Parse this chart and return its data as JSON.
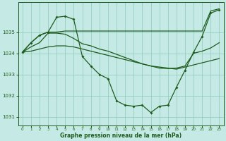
{
  "title": "Graphe pression niveau de la mer (hPa)",
  "bg": "#c5eae5",
  "grid_color": "#8ec8b8",
  "lc": "#1e5c1e",
  "xlim": [
    -0.5,
    23.5
  ],
  "ylim": [
    1030.6,
    1036.4
  ],
  "yticks": [
    1031,
    1032,
    1033,
    1034,
    1035
  ],
  "xticks": [
    0,
    1,
    2,
    3,
    4,
    5,
    6,
    7,
    8,
    9,
    10,
    11,
    12,
    13,
    14,
    15,
    16,
    17,
    18,
    19,
    20,
    21,
    22,
    23
  ],
  "x": [
    0,
    1,
    2,
    3,
    4,
    5,
    6,
    7,
    8,
    9,
    10,
    11,
    12,
    13,
    14,
    15,
    16,
    17,
    18,
    19,
    20,
    21,
    22,
    23
  ],
  "line_marker_y": [
    1034.05,
    1034.5,
    1034.85,
    1035.0,
    1035.7,
    1035.75,
    1035.6,
    1033.85,
    1033.4,
    1033.0,
    1032.8,
    1031.75,
    1031.55,
    1031.5,
    1031.55,
    1031.2,
    1031.5,
    1031.55,
    1032.4,
    1033.2,
    1034.05,
    1034.8,
    1035.9,
    1036.05
  ],
  "line_flat_y": [
    1034.05,
    1034.5,
    1034.85,
    1035.0,
    1035.0,
    1035.05,
    1035.05,
    1035.05,
    1035.05,
    1035.05,
    1035.05,
    1035.05,
    1035.05,
    1035.05,
    1035.05,
    1035.05,
    1035.05,
    1035.05,
    1035.05,
    1035.05,
    1035.05,
    1035.05,
    1036.0,
    1036.1
  ],
  "line_diag1_y": [
    1034.05,
    1034.3,
    1034.5,
    1034.95,
    1034.95,
    1034.9,
    1034.7,
    1034.45,
    1034.35,
    1034.2,
    1034.1,
    1033.95,
    1033.8,
    1033.65,
    1033.5,
    1033.4,
    1033.3,
    1033.28,
    1033.3,
    1033.4,
    1034.0,
    1034.1,
    1034.25,
    1034.5
  ],
  "line_diag2_y": [
    1034.05,
    1034.1,
    1034.2,
    1034.3,
    1034.35,
    1034.35,
    1034.3,
    1034.2,
    1034.1,
    1034.0,
    1033.9,
    1033.8,
    1033.7,
    1033.6,
    1033.5,
    1033.4,
    1033.35,
    1033.3,
    1033.25,
    1033.35,
    1033.45,
    1033.55,
    1033.65,
    1033.75
  ]
}
